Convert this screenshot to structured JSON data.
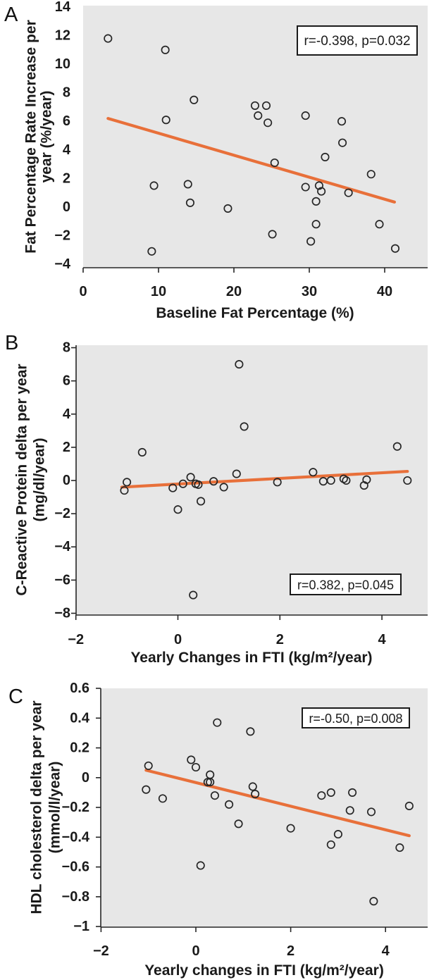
{
  "styles": {
    "plot_bg": "#E7E7E7",
    "trend_color": "#E8703A",
    "point_stroke": "#262626",
    "axis_color": "#262626",
    "text_color": "#1a1a1a"
  },
  "chart_data": [
    {
      "type": "scatter",
      "panel": "A",
      "annotation": "r=-0.398, p=0.032",
      "xlabel": "Baseline Fat Percentage (%)",
      "ylabel_lines": [
        "Fat Percentage Rate Increase per",
        "year (%/year)"
      ],
      "xlim": [
        0,
        45.7
      ],
      "ylim": [
        -4.25,
        14.1
      ],
      "grid": false,
      "marker": "open-circle",
      "x_ticks": [
        {
          "v": 0,
          "label": "0"
        },
        {
          "v": 10,
          "label": "10"
        },
        {
          "v": 20,
          "label": "20"
        },
        {
          "v": 30,
          "label": "30"
        },
        {
          "v": 40,
          "label": "40"
        }
      ],
      "y_ticks": [
        {
          "v": 14,
          "label": "14"
        },
        {
          "v": 12,
          "label": "12"
        },
        {
          "v": 10,
          "label": "10"
        },
        {
          "v": 8,
          "label": "8"
        },
        {
          "v": 6,
          "label": "6"
        },
        {
          "v": 4,
          "label": "4"
        },
        {
          "v": 2,
          "label": "2"
        },
        {
          "v": 0,
          "label": "0"
        },
        {
          "v": -2,
          "label": "−2"
        },
        {
          "v": -4,
          "label": "−4"
        }
      ],
      "points": [
        [
          3.3,
          11.8
        ],
        [
          10.9,
          11.0
        ],
        [
          14.7,
          7.5
        ],
        [
          11.0,
          6.1
        ],
        [
          22.8,
          7.1
        ],
        [
          24.3,
          7.1
        ],
        [
          23.2,
          6.4
        ],
        [
          24.5,
          5.9
        ],
        [
          29.5,
          6.4
        ],
        [
          34.3,
          6.0
        ],
        [
          34.4,
          4.5
        ],
        [
          32.1,
          3.5
        ],
        [
          25.4,
          3.1
        ],
        [
          38.2,
          2.3
        ],
        [
          9.4,
          1.5
        ],
        [
          13.9,
          1.6
        ],
        [
          29.5,
          1.4
        ],
        [
          31.3,
          1.5
        ],
        [
          31.6,
          1.1
        ],
        [
          35.2,
          1.0
        ],
        [
          14.2,
          0.3
        ],
        [
          30.9,
          0.4
        ],
        [
          19.2,
          -0.1
        ],
        [
          30.9,
          -1.2
        ],
        [
          39.3,
          -1.2
        ],
        [
          25.1,
          -1.9
        ],
        [
          30.2,
          -2.4
        ],
        [
          41.4,
          -2.9
        ],
        [
          9.1,
          -3.1
        ]
      ],
      "trend": {
        "x1": 3.3,
        "y1": 6.2,
        "x2": 41.3,
        "y2": 0.35
      }
    },
    {
      "type": "scatter",
      "panel": "B",
      "annotation": "r=0.382, p=0.045",
      "xlabel": "Yearly Changes in FTI (kg/m²/year)",
      "ylabel_lines": [
        "C-Reactive Protein delta per year",
        "(mg/dl/year)"
      ],
      "xlim": [
        -2,
        4.9
      ],
      "ylim": [
        -8.11,
        8.15
      ],
      "grid": false,
      "marker": "open-circle",
      "x_ticks": [
        {
          "v": -2,
          "label": "−2"
        },
        {
          "v": 0,
          "label": "0"
        },
        {
          "v": 2,
          "label": "2"
        },
        {
          "v": 4,
          "label": "4"
        }
      ],
      "y_ticks": [
        {
          "v": 8,
          "label": "8"
        },
        {
          "v": 6,
          "label": "6"
        },
        {
          "v": 4,
          "label": "4"
        },
        {
          "v": 2,
          "label": "2"
        },
        {
          "v": 0,
          "label": "0"
        },
        {
          "v": -2,
          "label": "−2"
        },
        {
          "v": -4,
          "label": "−4"
        },
        {
          "v": -6,
          "label": "−6"
        },
        {
          "v": -8,
          "label": "−8"
        }
      ],
      "points": [
        [
          -1.05,
          -0.6
        ],
        [
          -1.0,
          -0.1
        ],
        [
          -0.7,
          1.7
        ],
        [
          -0.1,
          -0.45
        ],
        [
          0.0,
          -1.75
        ],
        [
          0.1,
          -0.2
        ],
        [
          0.25,
          0.2
        ],
        [
          0.3,
          -6.9
        ],
        [
          0.35,
          -0.2
        ],
        [
          0.4,
          -0.25
        ],
        [
          0.45,
          -1.25
        ],
        [
          0.7,
          -0.05
        ],
        [
          0.9,
          -0.4
        ],
        [
          1.15,
          0.4
        ],
        [
          1.2,
          7.0
        ],
        [
          1.3,
          3.25
        ],
        [
          1.95,
          -0.1
        ],
        [
          2.65,
          0.5
        ],
        [
          2.85,
          -0.05
        ],
        [
          3.0,
          0.0
        ],
        [
          3.25,
          0.1
        ],
        [
          3.3,
          0.0
        ],
        [
          3.65,
          -0.3
        ],
        [
          3.7,
          0.05
        ],
        [
          4.3,
          2.05
        ],
        [
          4.5,
          0.0
        ]
      ],
      "trend": {
        "x1": -1.1,
        "y1": -0.4,
        "x2": 4.5,
        "y2": 0.55
      }
    },
    {
      "type": "scatter",
      "panel": "C",
      "annotation": "r=-0.50, p=0.008",
      "xlabel": "Yearly changes in FTI (kg/m²/year)",
      "ylabel_lines": [
        "HDL cholesterol delta per year",
        "(mmol/l/year)"
      ],
      "xlim": [
        -2,
        4.9
      ],
      "ylim": [
        -1.004,
        0.6
      ],
      "grid": false,
      "marker": "open-circle",
      "x_ticks": [
        {
          "v": -2,
          "label": "−2"
        },
        {
          "v": 0,
          "label": "0"
        },
        {
          "v": 2,
          "label": "2"
        },
        {
          "v": 4,
          "label": "4"
        }
      ],
      "y_ticks": [
        {
          "v": 0.6,
          "label": "0.6"
        },
        {
          "v": 0.4,
          "label": "0.4"
        },
        {
          "v": 0.2,
          "label": "0.2"
        },
        {
          "v": 0,
          "label": "0"
        },
        {
          "v": -0.2,
          "label": "−0.2"
        },
        {
          "v": -0.4,
          "label": "−0.4"
        },
        {
          "v": -0.6,
          "label": "−0.6"
        },
        {
          "v": -0.8,
          "label": "−0.8"
        },
        {
          "v": -1,
          "label": "−1"
        }
      ],
      "points": [
        [
          -1.05,
          -0.08
        ],
        [
          -1.0,
          0.08
        ],
        [
          -0.7,
          -0.14
        ],
        [
          -0.1,
          0.12
        ],
        [
          0.0,
          0.07
        ],
        [
          0.1,
          -0.59
        ],
        [
          0.25,
          -0.03
        ],
        [
          0.3,
          0.02
        ],
        [
          0.3,
          -0.03
        ],
        [
          0.4,
          -0.12
        ],
        [
          0.45,
          0.37
        ],
        [
          0.7,
          -0.18
        ],
        [
          0.9,
          -0.31
        ],
        [
          1.15,
          0.31
        ],
        [
          1.2,
          -0.06
        ],
        [
          1.25,
          -0.11
        ],
        [
          2.0,
          -0.34
        ],
        [
          2.65,
          -0.12
        ],
        [
          2.85,
          -0.1
        ],
        [
          2.85,
          -0.45
        ],
        [
          3.0,
          -0.38
        ],
        [
          3.25,
          -0.22
        ],
        [
          3.3,
          -0.1
        ],
        [
          3.7,
          -0.23
        ],
        [
          3.75,
          -0.83
        ],
        [
          4.3,
          -0.47
        ],
        [
          4.5,
          -0.19
        ]
      ],
      "trend": {
        "x1": -1.05,
        "y1": 0.05,
        "x2": 4.5,
        "y2": -0.39
      }
    }
  ]
}
